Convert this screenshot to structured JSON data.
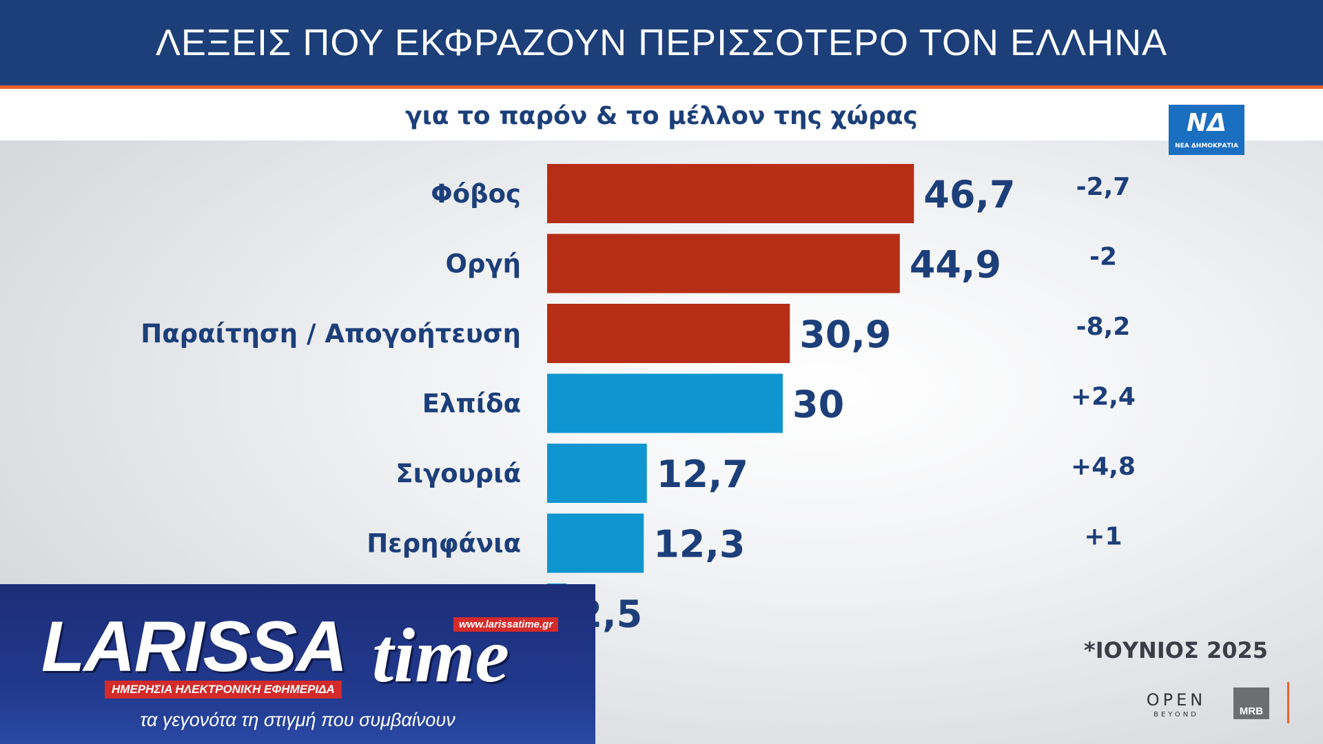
{
  "header": {
    "title": "ΛΕΞΕΙΣ ΠΟΥ ΕΚΦΡΑΖΟΥΝ ΠΕΡΙΣΣΟΤΕΡΟ ΤΟΝ ΕΛΛΗΝΑ",
    "subtitle": "για το παρόν & το μέλλον της χώρας"
  },
  "party_logo": {
    "mark": "ΝΔ",
    "text": "ΝΕΑ ΔΗΜΟΚΡΑΤΙΑ"
  },
  "colors": {
    "header_bg": "#1c3f7a",
    "accent_orange": "#e8632b",
    "bar_negative": "#b72e16",
    "bar_positive": "#0f96d0",
    "text_navy": "#1c3f7a"
  },
  "chart_data": {
    "type": "bar",
    "orientation": "horizontal",
    "categories": [
      "Φόβος",
      "Οργή",
      "Παραίτηση / Απογοήτευση",
      "Ελπίδα",
      "Σιγουριά",
      "Περηφάνια",
      ""
    ],
    "values": [
      46.7,
      44.9,
      30.9,
      30,
      12.7,
      12.3,
      2.5
    ],
    "value_labels": [
      "46,7",
      "44,9",
      "30,9",
      "30",
      "12,7",
      "12,3",
      "2,5"
    ],
    "changes": [
      "-2,7",
      "-2",
      "-8,2",
      "+2,4",
      "+4,8",
      "+1",
      ""
    ],
    "bar_colors": [
      "#b72e16",
      "#b72e16",
      "#b72e16",
      "#0f96d0",
      "#0f96d0",
      "#0f96d0",
      "#0f96d0"
    ],
    "xlim": [
      0,
      50
    ],
    "grid": false,
    "title": "ΛΕΞΕΙΣ ΠΟΥ ΕΚΦΡΑΖΟΥΝ ΠΕΡΙΣΣΟΤΕΡΟ ΤΟΝ ΕΛΛΗΝΑ",
    "subtitle": "για το παρόν & το μέλλον της χώρας"
  },
  "footer": {
    "date": "*ΙΟΥΝΙΟΣ 2025",
    "open_logo": "OPEN",
    "open_sub": "BEYOND",
    "mrb_logo": "MRB"
  },
  "watermark": {
    "brand": "LARISSA",
    "brand_time": "time",
    "url": "www.larissatime.gr",
    "strap": "ΗΜΕΡΗΣΙΑ ΗΛΕΚΤΡΟΝΙΚΗ ΕΦΗΜΕΡΙΔΑ",
    "tagline": "τα γεγονότα τη στιγμή που συμβαίνουν"
  }
}
